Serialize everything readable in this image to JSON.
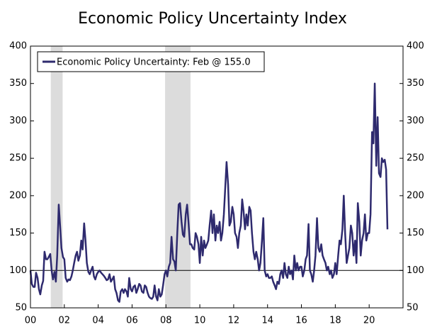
{
  "chart_data": {
    "type": "line",
    "title": "Economic Policy Uncertainty Index",
    "legend_label": "Economic Policy Uncertainty: Feb @ 155.0",
    "legend_position": "upper left",
    "reference_line": 100,
    "shaded_spans": [
      [
        2001.2,
        2001.9
      ],
      [
        2007.95,
        2009.45
      ]
    ],
    "xlim": [
      2000,
      2022
    ],
    "xticks": [
      {
        "value": 2000,
        "label": "00"
      },
      {
        "value": 2002,
        "label": "02"
      },
      {
        "value": 2004,
        "label": "04"
      },
      {
        "value": 2006,
        "label": "06"
      },
      {
        "value": 2008,
        "label": "08"
      },
      {
        "value": 2010,
        "label": "10"
      },
      {
        "value": 2012,
        "label": "12"
      },
      {
        "value": 2014,
        "label": "14"
      },
      {
        "value": 2016,
        "label": "16"
      },
      {
        "value": 2018,
        "label": "18"
      },
      {
        "value": 2020,
        "label": "20"
      }
    ],
    "ylim": [
      50,
      400
    ],
    "yticks": [
      50,
      100,
      150,
      200,
      250,
      300,
      350,
      400
    ],
    "y2lim": [
      50,
      400
    ],
    "y2ticks": [
      50,
      100,
      150,
      200,
      250,
      300,
      350,
      400
    ],
    "x": [
      2000.0,
      2000.08,
      2000.17,
      2000.25,
      2000.33,
      2000.42,
      2000.5,
      2000.58,
      2000.67,
      2000.75,
      2000.83,
      2000.92,
      2001.0,
      2001.08,
      2001.17,
      2001.25,
      2001.33,
      2001.42,
      2001.5,
      2001.58,
      2001.67,
      2001.75,
      2001.83,
      2001.92,
      2002.0,
      2002.08,
      2002.17,
      2002.25,
      2002.33,
      2002.42,
      2002.5,
      2002.58,
      2002.67,
      2002.75,
      2002.83,
      2002.92,
      2003.0,
      2003.08,
      2003.17,
      2003.25,
      2003.33,
      2003.42,
      2003.5,
      2003.58,
      2003.67,
      2003.75,
      2003.83,
      2003.92,
      2004.0,
      2004.08,
      2004.17,
      2004.25,
      2004.33,
      2004.42,
      2004.5,
      2004.58,
      2004.67,
      2004.75,
      2004.83,
      2004.92,
      2005.0,
      2005.08,
      2005.17,
      2005.25,
      2005.33,
      2005.42,
      2005.5,
      2005.58,
      2005.67,
      2005.75,
      2005.83,
      2005.92,
      2006.0,
      2006.08,
      2006.17,
      2006.25,
      2006.33,
      2006.42,
      2006.5,
      2006.58,
      2006.67,
      2006.75,
      2006.83,
      2006.92,
      2007.0,
      2007.08,
      2007.17,
      2007.25,
      2007.33,
      2007.42,
      2007.5,
      2007.58,
      2007.67,
      2007.75,
      2007.83,
      2007.92,
      2008.0,
      2008.08,
      2008.17,
      2008.25,
      2008.33,
      2008.42,
      2008.5,
      2008.58,
      2008.67,
      2008.75,
      2008.83,
      2008.92,
      2009.0,
      2009.08,
      2009.17,
      2009.25,
      2009.33,
      2009.42,
      2009.5,
      2009.58,
      2009.67,
      2009.75,
      2009.83,
      2009.92,
      2010.0,
      2010.08,
      2010.17,
      2010.25,
      2010.33,
      2010.42,
      2010.5,
      2010.58,
      2010.67,
      2010.75,
      2010.83,
      2010.92,
      2011.0,
      2011.08,
      2011.17,
      2011.25,
      2011.33,
      2011.42,
      2011.5,
      2011.58,
      2011.67,
      2011.75,
      2011.83,
      2011.92,
      2012.0,
      2012.08,
      2012.17,
      2012.25,
      2012.33,
      2012.42,
      2012.5,
      2012.58,
      2012.67,
      2012.75,
      2012.83,
      2012.92,
      2013.0,
      2013.08,
      2013.17,
      2013.25,
      2013.33,
      2013.42,
      2013.5,
      2013.58,
      2013.67,
      2013.75,
      2013.83,
      2013.92,
      2014.0,
      2014.08,
      2014.17,
      2014.25,
      2014.33,
      2014.42,
      2014.5,
      2014.58,
      2014.67,
      2014.75,
      2014.83,
      2014.92,
      2015.0,
      2015.08,
      2015.17,
      2015.25,
      2015.33,
      2015.42,
      2015.5,
      2015.58,
      2015.67,
      2015.75,
      2015.83,
      2015.92,
      2016.0,
      2016.08,
      2016.17,
      2016.25,
      2016.33,
      2016.42,
      2016.5,
      2016.58,
      2016.67,
      2016.75,
      2016.83,
      2016.92,
      2017.0,
      2017.08,
      2017.17,
      2017.25,
      2017.33,
      2017.42,
      2017.5,
      2017.58,
      2017.67,
      2017.75,
      2017.83,
      2017.92,
      2018.0,
      2018.08,
      2018.17,
      2018.25,
      2018.33,
      2018.42,
      2018.5,
      2018.58,
      2018.67,
      2018.75,
      2018.83,
      2018.92,
      2019.0,
      2019.08,
      2019.17,
      2019.25,
      2019.33,
      2019.42,
      2019.5,
      2019.58,
      2019.67,
      2019.75,
      2019.83,
      2019.92,
      2020.0,
      2020.08,
      2020.17,
      2020.25,
      2020.33,
      2020.42,
      2020.5,
      2020.58,
      2020.67,
      2020.75,
      2020.83,
      2020.92,
      2021.0,
      2021.08
    ],
    "series": [
      {
        "name": "Economic Policy Uncertainty",
        "color": "#2e2a6e",
        "values": [
          100,
          82,
          78,
          78,
          97,
          90,
          75,
          68,
          80,
          86,
          125,
          115,
          115,
          118,
          122,
          100,
          88,
          98,
          85,
          120,
          188,
          160,
          130,
          118,
          115,
          90,
          85,
          88,
          87,
          92,
          100,
          110,
          120,
          125,
          113,
          120,
          140,
          128,
          163,
          140,
          110,
          98,
          95,
          100,
          105,
          92,
          88,
          95,
          98,
          100,
          97,
          95,
          93,
          90,
          87,
          88,
          95,
          85,
          88,
          92,
          75,
          70,
          60,
          58,
          72,
          75,
          70,
          75,
          72,
          65,
          90,
          75,
          72,
          78,
          80,
          70,
          75,
          82,
          80,
          72,
          70,
          80,
          78,
          70,
          65,
          63,
          62,
          65,
          80,
          65,
          60,
          75,
          65,
          68,
          80,
          95,
          100,
          92,
          105,
          110,
          145,
          115,
          112,
          100,
          150,
          188,
          190,
          165,
          148,
          145,
          175,
          188,
          165,
          135,
          135,
          130,
          128,
          150,
          145,
          135,
          110,
          145,
          120,
          140,
          130,
          135,
          140,
          160,
          180,
          150,
          175,
          140,
          160,
          150,
          165,
          140,
          150,
          175,
          210,
          245,
          215,
          160,
          165,
          185,
          175,
          150,
          145,
          130,
          150,
          160,
          195,
          180,
          155,
          175,
          160,
          185,
          180,
          150,
          125,
          115,
          125,
          115,
          100,
          110,
          140,
          170,
          100,
          92,
          95,
          90,
          90,
          92,
          85,
          80,
          75,
          85,
          82,
          95,
          100,
          90,
          110,
          95,
          90,
          105,
          95,
          100,
          88,
          120,
          100,
          110,
          100,
          105,
          105,
          92,
          100,
          115,
          120,
          162,
          100,
          95,
          85,
          100,
          120,
          170,
          130,
          125,
          135,
          120,
          115,
          110,
          100,
          105,
          95,
          100,
          90,
          95,
          110,
          95,
          120,
          140,
          135,
          155,
          200,
          150,
          110,
          120,
          130,
          160,
          150,
          120,
          140,
          110,
          190,
          165,
          120,
          140,
          150,
          175,
          140,
          150,
          150,
          175,
          285,
          270,
          350,
          240,
          305,
          230,
          225,
          250,
          245,
          248,
          235,
          155
        ]
      }
    ]
  }
}
